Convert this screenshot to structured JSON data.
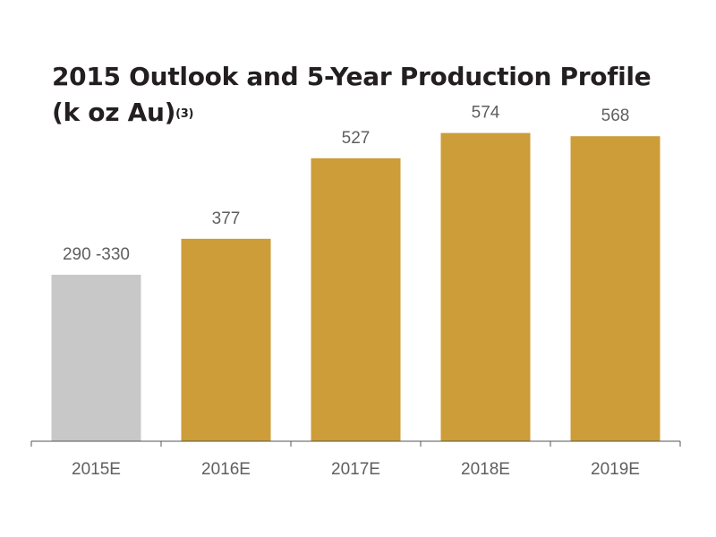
{
  "title": {
    "line1": "2015 Outlook and 5-Year Production Profile",
    "line2": "(k oz Au)",
    "footnote": "(3)"
  },
  "colors": {
    "estimate_bar": "#c8c8c8",
    "projection_bar": "#cc9d38",
    "axis": "#555555",
    "label_text": "#5f5f5f",
    "title_text": "#231f20"
  },
  "chart_data": {
    "type": "bar",
    "categories": [
      "2015E",
      "2016E",
      "2017E",
      "2018E",
      "2019E"
    ],
    "values": [
      310,
      377,
      527,
      574,
      568
    ],
    "ranges": [
      [
        290,
        330
      ],
      null,
      null,
      null,
      null
    ],
    "data_labels": [
      "290 -330",
      "377",
      "527",
      "574",
      "568"
    ],
    "bar_colors": [
      "#c8c8c8",
      "#cc9d38",
      "#cc9d38",
      "#cc9d38",
      "#cc9d38"
    ],
    "ylim": [
      0,
      600
    ],
    "grid": false,
    "legend": "none"
  }
}
